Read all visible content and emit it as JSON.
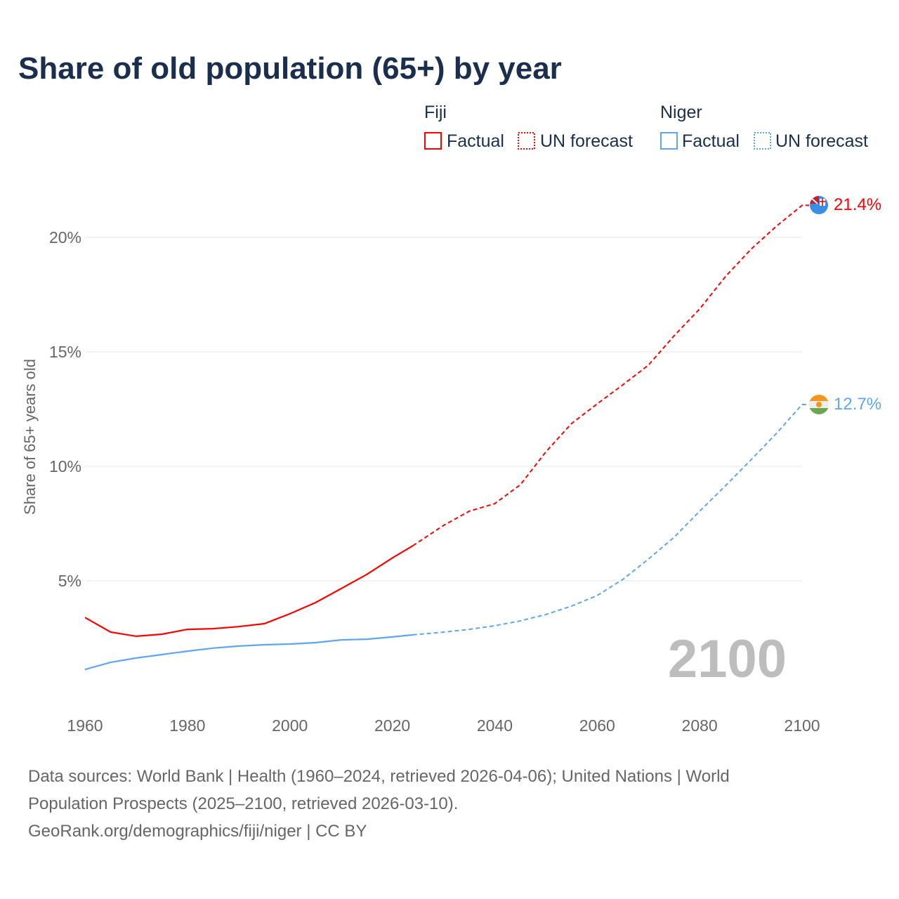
{
  "chart_data": {
    "type": "line",
    "title": "Share of old population (65+) by year",
    "xlabel": "",
    "ylabel": "Share of 65+ years old",
    "xlim": [
      1960,
      2100
    ],
    "ylim": [
      0,
      22
    ],
    "x_ticks": [
      "1960",
      "1980",
      "2000",
      "2020",
      "2040",
      "2060",
      "2080",
      "2100"
    ],
    "x_tick_values": [
      1960,
      1980,
      2000,
      2020,
      2040,
      2060,
      2080,
      2100
    ],
    "y_ticks": [
      "5%",
      "10%",
      "15%",
      "20%"
    ],
    "y_tick_values": [
      5,
      10,
      15,
      20
    ],
    "grid": true,
    "current_year_label": "2100",
    "legend": {
      "placement": "top-right",
      "groups": [
        {
          "country": "Fiji",
          "color": "#ff0000",
          "factual": "Factual",
          "forecast": "UN forecast"
        },
        {
          "country": "Niger",
          "color": "#5ea6ee",
          "factual": "Factual",
          "forecast": "UN forecast"
        }
      ]
    },
    "x": [
      1960,
      1965,
      1970,
      1975,
      1980,
      1985,
      1990,
      1995,
      2000,
      2005,
      2010,
      2015,
      2020,
      2024,
      2030,
      2035,
      2040,
      2045,
      2050,
      2055,
      2060,
      2065,
      2070,
      2075,
      2080,
      2085,
      2090,
      2095,
      2100
    ],
    "factual_until": 2024,
    "series": [
      {
        "name": "Fiji",
        "color": "#ff0000",
        "end_label": "21.4%",
        "values": [
          3.4,
          2.76,
          2.58,
          2.67,
          2.88,
          2.91,
          3.0,
          3.13,
          3.56,
          4.05,
          4.66,
          5.28,
          6.0,
          6.53,
          7.42,
          8.04,
          8.37,
          9.2,
          10.64,
          11.87,
          12.73,
          13.56,
          14.42,
          15.7,
          16.87,
          18.28,
          19.48,
          20.49,
          21.4
        ]
      },
      {
        "name": "Niger",
        "color": "#5ea6ee",
        "end_label": "12.7%",
        "values": [
          1.13,
          1.44,
          1.63,
          1.78,
          1.93,
          2.06,
          2.15,
          2.21,
          2.24,
          2.3,
          2.42,
          2.45,
          2.55,
          2.64,
          2.76,
          2.88,
          3.04,
          3.25,
          3.53,
          3.9,
          4.36,
          5.06,
          5.95,
          6.9,
          8.04,
          9.14,
          10.28,
          11.44,
          12.7
        ]
      }
    ]
  },
  "footer": {
    "line1": "Data sources: World Bank | Health (1960–2024, retrieved 2026-04-06); United Nations | World",
    "line2": "Population Prospects (2025–2100, retrieved 2026-03-10).",
    "line3": "GeoRank.org/demographics/fiji/niger | CC BY"
  }
}
